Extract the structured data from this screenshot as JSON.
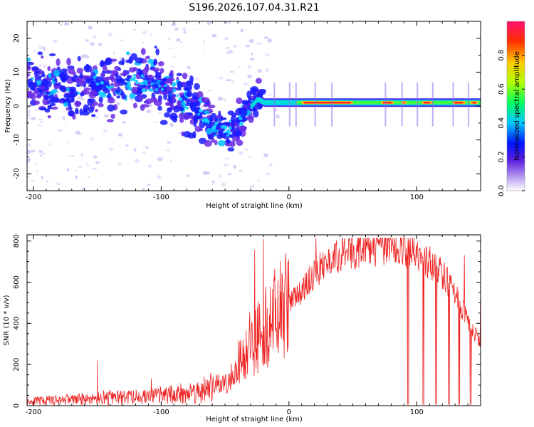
{
  "title": "S196.2026.107.04.31.R21",
  "chart_data": [
    {
      "type": "heatmap",
      "title": "S196.2026.107.04.31.R21",
      "xlabel": "Height of straight line (km)",
      "ylabel": "Frequency (Hz)",
      "xlim": [
        -205,
        150
      ],
      "ylim": [
        -25,
        25
      ],
      "xticks": [
        -200,
        -100,
        0,
        100
      ],
      "yticks": [
        -20,
        -10,
        0,
        10,
        20
      ],
      "colorbar": {
        "label": "Normalized spectral amplitude",
        "range": [
          0,
          1
        ],
        "ticks": [
          0.0,
          0.2,
          0.4,
          0.6,
          0.8
        ]
      },
      "ridge": {
        "x": [
          -200,
          -180,
          -160,
          -140,
          -120,
          -100,
          -85,
          -70,
          -60,
          -50,
          -45,
          -40,
          -35,
          -30,
          -25,
          -20,
          -10,
          0,
          10,
          20,
          40,
          60,
          80,
          100,
          120,
          150
        ],
        "frequency_hz": [
          6,
          5,
          4,
          6,
          8,
          6,
          2,
          -2,
          -6,
          -7,
          -8,
          -6,
          -2,
          0,
          2,
          1,
          1,
          1,
          1,
          1,
          1,
          1,
          1,
          1,
          1,
          1
        ]
      }
    },
    {
      "type": "line",
      "xlabel": "Height of straight line (km)",
      "ylabel": "SNR (10 * v/v)",
      "xlim": [
        -205,
        150
      ],
      "ylim": [
        0,
        830
      ],
      "xticks": [
        -200,
        -100,
        0,
        100
      ],
      "yticks": [
        0,
        200,
        400,
        600,
        800
      ],
      "color": "#ee2222",
      "series": [
        {
          "name": "SNR",
          "x": [
            -205,
            -190,
            -170,
            -150,
            -130,
            -110,
            -90,
            -70,
            -50,
            -40,
            -30,
            -20,
            -10,
            0,
            10,
            20,
            30,
            40,
            50,
            60,
            70,
            80,
            90,
            100,
            110,
            120,
            130,
            140,
            150
          ],
          "values": [
            20,
            25,
            30,
            35,
            40,
            45,
            55,
            70,
            110,
            200,
            300,
            380,
            440,
            500,
            560,
            640,
            700,
            730,
            750,
            760,
            770,
            770,
            760,
            730,
            700,
            640,
            540,
            420,
            300
          ]
        }
      ],
      "dropouts_x": [
        93,
        105,
        115,
        125,
        133,
        142
      ],
      "spikes": [
        {
          "x": -150,
          "y": 220
        },
        {
          "x": -20,
          "y": 810
        }
      ]
    }
  ]
}
